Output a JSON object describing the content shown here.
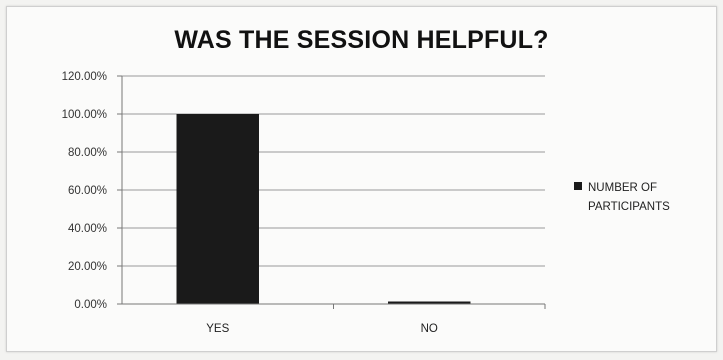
{
  "chart_data": {
    "type": "bar",
    "title": "WAS THE SESSION HELPFUL?",
    "categories": [
      "YES",
      "NO"
    ],
    "series": [
      {
        "name": "NUMBER OF PARTICIPANTS",
        "values": [
          100,
          0
        ],
        "color": "#1a1a1a"
      }
    ],
    "ylim": [
      0,
      120
    ],
    "yticks": [
      "0.00%",
      "20.00%",
      "40.00%",
      "60.00%",
      "80.00%",
      "100.00%",
      "120.00%"
    ],
    "grid": true,
    "legend_position": "right",
    "legend_labels": [
      "NUMBER OF",
      "PARTICIPANTS"
    ]
  }
}
